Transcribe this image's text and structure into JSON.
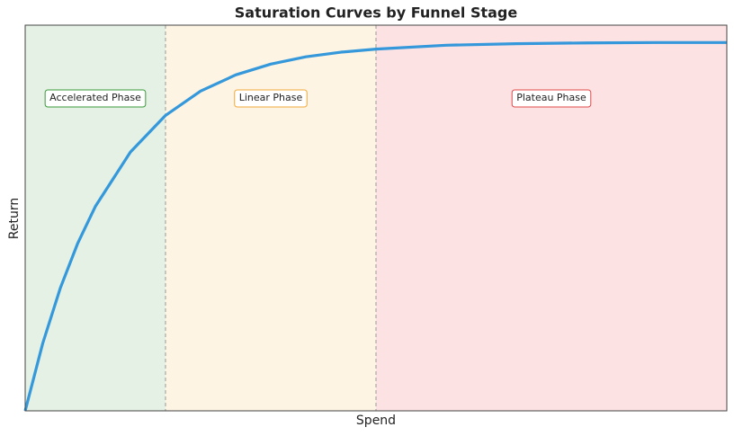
{
  "chart_data": {
    "type": "line",
    "title": "Saturation Curves by Funnel Stage",
    "xlabel": "Spend",
    "ylabel": "Return",
    "x": [
      0,
      0.25,
      0.5,
      0.75,
      1,
      1.5,
      2,
      2.5,
      3,
      3.5,
      4,
      4.5,
      5,
      6,
      7,
      8,
      9,
      10
    ],
    "values": [
      0,
      0.175,
      0.318,
      0.435,
      0.53,
      0.671,
      0.766,
      0.829,
      0.871,
      0.899,
      0.918,
      0.93,
      0.938,
      0.948,
      0.952,
      0.954,
      0.955,
      0.955
    ],
    "color": "#3498db",
    "xlim": [
      0,
      10
    ],
    "ylim": [
      0,
      1
    ],
    "regions": [
      {
        "label": "Accelerated Phase",
        "start": 0,
        "end": 2,
        "fill": "#e4f1e4",
        "color": "#3a9a3a"
      },
      {
        "label": "Linear Phase",
        "start": 2,
        "end": 5,
        "fill": "#fdf4e3",
        "color": "#f2a93b"
      },
      {
        "label": "Plateau Phase",
        "start": 5,
        "end": 10,
        "fill": "#fde2e4",
        "color": "#e04848"
      }
    ]
  }
}
